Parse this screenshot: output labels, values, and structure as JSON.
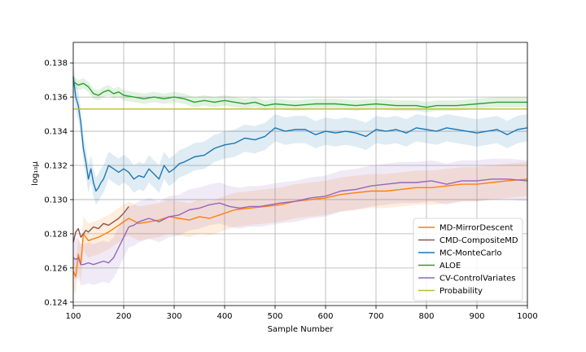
{
  "chart_data": {
    "type": "line",
    "title": "",
    "xlabel": "Sample Number",
    "ylabel": "log₁₀μ",
    "xlim": [
      100,
      1000
    ],
    "ylim": [
      0.1238,
      0.1392
    ],
    "xticks": [
      100,
      200,
      300,
      400,
      500,
      600,
      700,
      800,
      900,
      1000
    ],
    "yticks": [
      0.124,
      0.126,
      0.128,
      0.13,
      0.132,
      0.134,
      0.136,
      0.138
    ],
    "ytick_labels": [
      "0.124",
      "0.126",
      "0.128",
      "0.130",
      "0.132",
      "0.134",
      "0.136",
      "0.138"
    ],
    "grid": true,
    "legend_position": "lower-right",
    "series": [
      {
        "name": "MD-MirrorDescent",
        "color": "#ff7f0e",
        "x": [
          100,
          105,
          110,
          115,
          120,
          130,
          150,
          170,
          190,
          210,
          230,
          250,
          270,
          290,
          310,
          330,
          350,
          370,
          390,
          420,
          450,
          480,
          510,
          540,
          570,
          600,
          630,
          660,
          690,
          720,
          750,
          780,
          810,
          840,
          870,
          900,
          930,
          960,
          1000
        ],
        "y": [
          0.1258,
          0.1255,
          0.1268,
          0.1262,
          0.128,
          0.1276,
          0.1278,
          0.1281,
          0.1285,
          0.1289,
          0.1286,
          0.1287,
          0.1288,
          0.129,
          0.1289,
          0.1288,
          0.129,
          0.1289,
          0.1291,
          0.1294,
          0.1295,
          0.1296,
          0.1297,
          0.1299,
          0.13,
          0.1301,
          0.1303,
          0.1304,
          0.1305,
          0.1305,
          0.1306,
          0.1307,
          0.1307,
          0.1308,
          0.1309,
          0.1309,
          0.131,
          0.1311,
          0.1312
        ],
        "band": 0.001
      },
      {
        "name": "CMD-CompositeMD",
        "color": "#8c564b",
        "x": [
          100,
          105,
          110,
          115,
          120,
          125,
          130,
          140,
          150,
          160,
          170,
          180,
          190,
          200,
          210
        ],
        "y": [
          0.1275,
          0.1281,
          0.1283,
          0.1278,
          0.128,
          0.1282,
          0.1281,
          0.1284,
          0.1283,
          0.1286,
          0.1285,
          0.1287,
          0.1289,
          0.1292,
          0.1296
        ],
        "band": 0
      },
      {
        "name": "MC-MonteCarlo",
        "color": "#1f77b4",
        "x": [
          100,
          105,
          110,
          115,
          120,
          125,
          130,
          135,
          140,
          145,
          150,
          155,
          160,
          170,
          180,
          190,
          200,
          210,
          220,
          230,
          240,
          250,
          260,
          270,
          280,
          290,
          300,
          310,
          320,
          340,
          360,
          380,
          400,
          420,
          440,
          460,
          480,
          500,
          520,
          540,
          560,
          580,
          600,
          620,
          640,
          660,
          680,
          700,
          720,
          740,
          760,
          780,
          800,
          820,
          840,
          860,
          880,
          900,
          920,
          940,
          960,
          980,
          1000
        ],
        "y": [
          0.1372,
          0.136,
          0.1355,
          0.1345,
          0.133,
          0.1322,
          0.1312,
          0.1318,
          0.131,
          0.1305,
          0.1307,
          0.131,
          0.1312,
          0.132,
          0.1318,
          0.1316,
          0.1318,
          0.1316,
          0.1312,
          0.1314,
          0.1313,
          0.1318,
          0.1315,
          0.1312,
          0.132,
          0.1316,
          0.1318,
          0.1321,
          0.1322,
          0.1325,
          0.1326,
          0.133,
          0.1332,
          0.1333,
          0.1336,
          0.1335,
          0.1337,
          0.1342,
          0.134,
          0.1341,
          0.1341,
          0.1338,
          0.134,
          0.1339,
          0.134,
          0.1339,
          0.1337,
          0.1341,
          0.134,
          0.1341,
          0.1339,
          0.1342,
          0.1341,
          0.134,
          0.1342,
          0.1341,
          0.134,
          0.1339,
          0.134,
          0.1341,
          0.1338,
          0.1341,
          0.1342
        ],
        "band": 0.0008
      },
      {
        "name": "ALOE",
        "color": "#2ca02c",
        "x": [
          100,
          110,
          120,
          130,
          140,
          150,
          160,
          170,
          180,
          190,
          200,
          220,
          240,
          260,
          280,
          300,
          320,
          340,
          360,
          380,
          400,
          420,
          440,
          460,
          480,
          500,
          540,
          580,
          620,
          660,
          700,
          740,
          780,
          800,
          820,
          860,
          900,
          940,
          1000
        ],
        "y": [
          0.1369,
          0.1367,
          0.1368,
          0.1366,
          0.1362,
          0.1361,
          0.1363,
          0.1364,
          0.1362,
          0.1363,
          0.1361,
          0.136,
          0.1359,
          0.136,
          0.1359,
          0.136,
          0.1359,
          0.1357,
          0.1358,
          0.1357,
          0.1358,
          0.1357,
          0.1356,
          0.1357,
          0.1355,
          0.1356,
          0.1355,
          0.1356,
          0.1356,
          0.1355,
          0.1356,
          0.1355,
          0.1355,
          0.1354,
          0.1355,
          0.1355,
          0.1356,
          0.1357,
          0.1357
        ],
        "band": 0.0003
      },
      {
        "name": "CV-ControlVariates",
        "color": "#9467bd",
        "x": [
          100,
          105,
          110,
          115,
          120,
          130,
          140,
          150,
          160,
          170,
          180,
          190,
          200,
          210,
          220,
          230,
          240,
          250,
          270,
          290,
          310,
          330,
          350,
          370,
          390,
          410,
          430,
          450,
          470,
          490,
          510,
          540,
          570,
          600,
          630,
          660,
          690,
          720,
          750,
          780,
          810,
          840,
          870,
          900,
          930,
          960,
          1000
        ],
        "y": [
          0.1266,
          0.1265,
          0.1266,
          0.1262,
          0.1262,
          0.1263,
          0.1262,
          0.1263,
          0.1264,
          0.1263,
          0.1266,
          0.1272,
          0.1278,
          0.1284,
          0.1285,
          0.1287,
          0.1288,
          0.1289,
          0.1287,
          0.129,
          0.1291,
          0.1294,
          0.1295,
          0.1297,
          0.1298,
          0.1296,
          0.1295,
          0.1296,
          0.1296,
          0.1297,
          0.1298,
          0.1299,
          0.1301,
          0.1302,
          0.1305,
          0.1306,
          0.1308,
          0.1309,
          0.131,
          0.131,
          0.1311,
          0.1309,
          0.1311,
          0.1311,
          0.1312,
          0.1312,
          0.1311
        ],
        "band": 0.0012
      },
      {
        "name": "Probability",
        "color": "#bcbd22",
        "x": [
          100,
          1000
        ],
        "y": [
          0.1353,
          0.1353
        ],
        "band": 0
      }
    ]
  }
}
